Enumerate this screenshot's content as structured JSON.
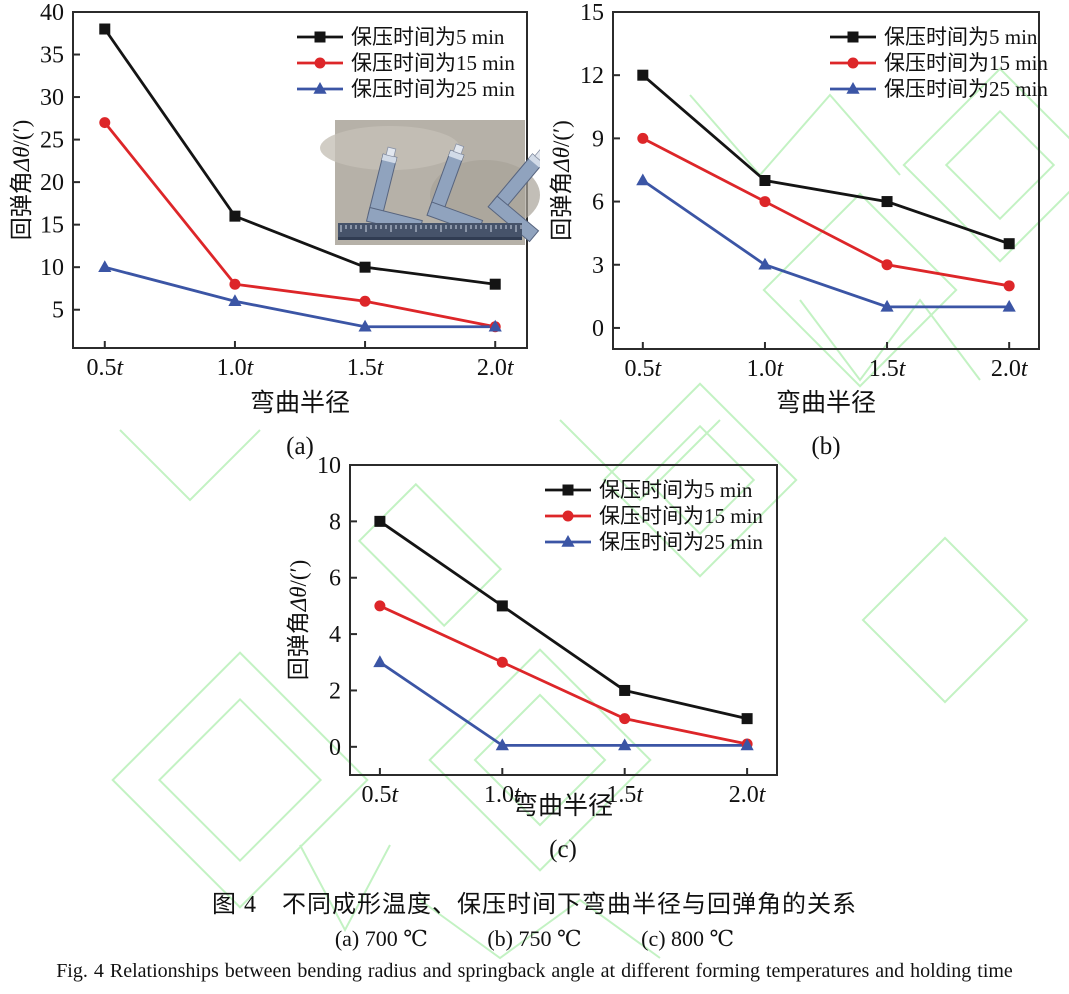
{
  "figure": {
    "caption_zh": "图 4　不同成形温度、保压时间下弯曲半径与回弹角的关系",
    "sub_captions": [
      "(a) 700 ℃",
      "(b) 750 ℃",
      "(c) 800 ℃"
    ],
    "caption_en": "Fig. 4   Relationships between bending radius and springback angle at different forming temperatures and holding time"
  },
  "colors": {
    "axis": "#2b2b2b",
    "black_series": "#141414",
    "red_series": "#dd2629",
    "blue_series": "#3b55a5",
    "watermark_green": "#c3f2c3",
    "inset_background": "#b6b1a8",
    "inset_metal": "#90a3be",
    "inset_ruler": "#46536a"
  },
  "chart_data": [
    {
      "id": "a",
      "type": "line",
      "panel_label": "(a)",
      "xlabel": "弯曲半径",
      "ylabel": "回弹角Δθ/(′)",
      "categories": [
        "0.5t",
        "1.0t",
        "1.5t",
        "2.0t"
      ],
      "ylim": [
        0.5,
        40
      ],
      "yticks": [
        5,
        10,
        15,
        20,
        25,
        30,
        35,
        40
      ],
      "grid": false,
      "legend_position": "top-right",
      "inset_photo": true,
      "series": [
        {
          "key": "t5",
          "name": "保压时间为5 min",
          "color": "#141414",
          "marker": "square",
          "values": [
            38,
            16,
            10,
            8
          ]
        },
        {
          "key": "t15",
          "name": "保压时间为15 min",
          "color": "#dd2629",
          "marker": "circle",
          "values": [
            27,
            8,
            6,
            3
          ]
        },
        {
          "key": "t25",
          "name": "保压时间为25 min",
          "color": "#3b55a5",
          "marker": "triangle",
          "values": [
            10,
            6,
            3,
            3
          ]
        }
      ]
    },
    {
      "id": "b",
      "type": "line",
      "panel_label": "(b)",
      "xlabel": "弯曲半径",
      "ylabel": "回弹角Δθ/(′)",
      "categories": [
        "0.5t",
        "1.0t",
        "1.5t",
        "2.0t"
      ],
      "ylim": [
        -1,
        15
      ],
      "yticks": [
        0,
        3,
        6,
        9,
        12,
        15
      ],
      "grid": false,
      "legend_position": "top-right",
      "inset_photo": false,
      "series": [
        {
          "key": "t5",
          "name": "保压时间为5 min",
          "color": "#141414",
          "marker": "square",
          "values": [
            12,
            7,
            6,
            4
          ]
        },
        {
          "key": "t15",
          "name": "保压时间为15 min",
          "color": "#dd2629",
          "marker": "circle",
          "values": [
            9,
            6,
            3,
            2
          ]
        },
        {
          "key": "t25",
          "name": "保压时间为25 min",
          "color": "#3b55a5",
          "marker": "triangle",
          "values": [
            7,
            3,
            1,
            1
          ]
        }
      ]
    },
    {
      "id": "c",
      "type": "line",
      "panel_label": "(c)",
      "xlabel": "弯曲半径",
      "ylabel": "回弹角Δθ/(′)",
      "categories": [
        "0.5t",
        "1.0t",
        "1.5t",
        "2.0t"
      ],
      "ylim": [
        -1,
        10
      ],
      "yticks": [
        0,
        2,
        4,
        6,
        8,
        10
      ],
      "grid": false,
      "legend_position": "top-right",
      "inset_photo": false,
      "series": [
        {
          "key": "t5",
          "name": "保压时间为5 min",
          "color": "#141414",
          "marker": "square",
          "values": [
            8,
            5,
            2,
            1
          ]
        },
        {
          "key": "t15",
          "name": "保压时间为15 min",
          "color": "#dd2629",
          "marker": "circle",
          "values": [
            5,
            3,
            1,
            0.1
          ]
        },
        {
          "key": "t25",
          "name": "保压时间为25 min",
          "color": "#3b55a5",
          "marker": "triangle",
          "values": [
            3,
            0.05,
            0.05,
            0.05
          ]
        }
      ]
    }
  ]
}
